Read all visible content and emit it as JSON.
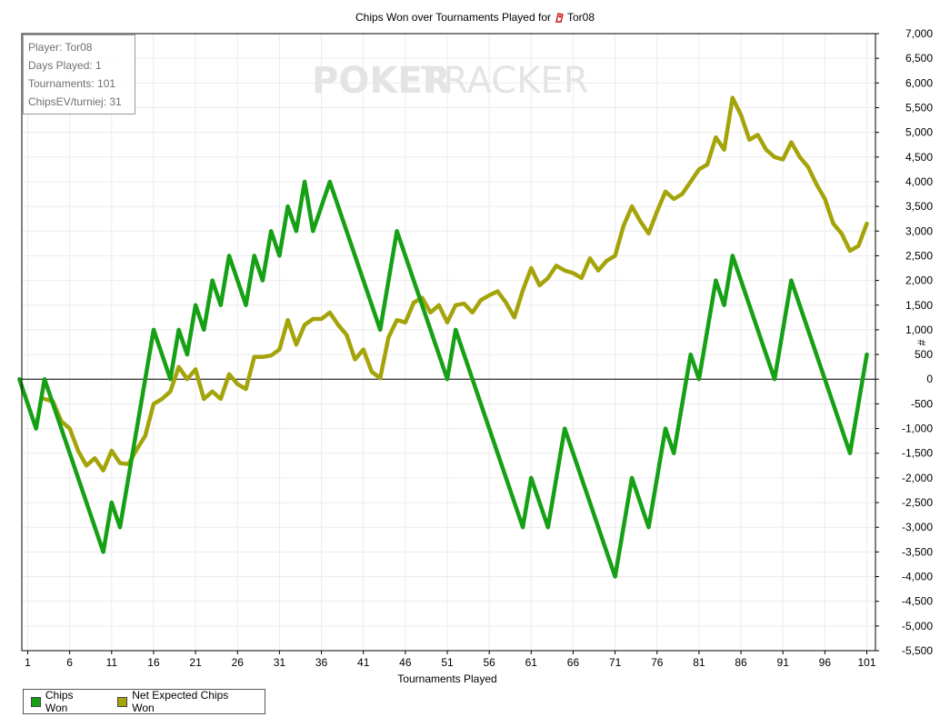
{
  "info": {
    "player": "Player: Tor08",
    "days": "Days Played: 1",
    "tournaments": "Tournaments: 101",
    "chipsev": "ChipsEV/turniej: 31"
  },
  "watermark": {
    "left": "POKER",
    "right": "TRACKER"
  },
  "title": {
    "prefix": "Chips Won over Tournaments Played for",
    "player": "Tor08"
  },
  "colors": {
    "chips_won": "#15a015",
    "net_expected": "#a4a40a",
    "grid": "#ececec"
  },
  "chart_data": {
    "type": "line",
    "title": "Chips Won over Tournaments Played for Tor08",
    "xlabel": "Tournaments Played",
    "ylabel": "#",
    "xlim": [
      0,
      101
    ],
    "ylim": [
      -5500,
      7000
    ],
    "x_ticks": [
      1,
      6,
      11,
      16,
      21,
      26,
      31,
      36,
      41,
      46,
      51,
      56,
      61,
      66,
      71,
      76,
      81,
      86,
      91,
      96,
      101
    ],
    "y_ticks": [
      -5500,
      -5000,
      -4500,
      -4000,
      -3500,
      -3000,
      -2500,
      -2000,
      -1500,
      -1000,
      -500,
      0,
      500,
      1000,
      1500,
      2000,
      2500,
      3000,
      3500,
      4000,
      4500,
      5000,
      5500,
      6000,
      6500,
      7000
    ],
    "legend": "bottom-left",
    "grid": true,
    "series": [
      {
        "name": "Chips Won",
        "x": [
          0,
          2,
          3,
          10,
          11,
          12,
          16,
          18,
          19,
          20,
          21,
          22,
          23,
          24,
          25,
          26,
          27,
          28,
          29,
          30,
          31,
          32,
          33,
          34,
          35,
          37,
          43,
          45,
          51,
          52,
          60,
          61,
          63,
          65,
          71,
          73,
          75,
          77,
          78,
          80,
          81,
          83,
          84,
          85,
          90,
          92,
          99,
          101
        ],
        "y": [
          0,
          -1000,
          0,
          -3500,
          -2500,
          -3000,
          1000,
          0,
          1000,
          500,
          1500,
          1000,
          2000,
          1500,
          2500,
          2000,
          1500,
          2500,
          2000,
          3000,
          2500,
          3500,
          3000,
          4000,
          3000,
          4000,
          1000,
          3000,
          0,
          1000,
          -3000,
          -2000,
          -3000,
          -1000,
          -4000,
          -2000,
          -3000,
          -1000,
          -1500,
          500,
          0,
          2000,
          1500,
          2500,
          0,
          2000,
          -1500,
          500
        ]
      },
      {
        "name": "Net Expected Chips Won",
        "x": [
          3,
          4,
          5,
          6,
          7,
          8,
          9,
          10,
          11,
          12,
          13,
          14,
          15,
          16,
          17,
          18,
          19,
          20,
          21,
          22,
          23,
          24,
          25,
          26,
          27,
          28,
          29,
          30,
          31,
          32,
          33,
          34,
          35,
          36,
          37,
          38,
          39,
          40,
          41,
          42,
          43,
          44,
          45,
          46,
          47,
          48,
          49,
          50,
          51,
          52,
          53,
          54,
          55,
          56,
          57,
          58,
          59,
          60,
          61,
          62,
          63,
          64,
          65,
          66,
          67,
          68,
          69,
          70,
          71,
          72,
          73,
          74,
          75,
          76,
          77,
          78,
          79,
          80,
          81,
          82,
          83,
          84,
          85,
          86,
          87,
          88,
          89,
          90,
          91,
          92,
          93,
          94,
          95,
          96,
          97,
          98,
          99,
          100,
          101
        ],
        "y": [
          -400,
          -450,
          -850,
          -1000,
          -1450,
          -1750,
          -1600,
          -1850,
          -1450,
          -1700,
          -1720,
          -1420,
          -1150,
          -500,
          -400,
          -250,
          250,
          0,
          200,
          -400,
          -250,
          -400,
          100,
          -100,
          -200,
          450,
          450,
          480,
          600,
          1200,
          700,
          1100,
          1220,
          1220,
          1350,
          1100,
          900,
          400,
          600,
          150,
          20,
          850,
          1200,
          1150,
          1550,
          1650,
          1350,
          1500,
          1150,
          1500,
          1530,
          1350,
          1600,
          1700,
          1780,
          1550,
          1250,
          1800,
          2250,
          1900,
          2050,
          2300,
          2200,
          2150,
          2050,
          2450,
          2200,
          2400,
          2500,
          3100,
          3500,
          3200,
          2950,
          3400,
          3800,
          3650,
          3750,
          4000,
          4250,
          4350,
          4900,
          4650,
          5700,
          5350,
          4850,
          4950,
          4650,
          4500,
          4450,
          4800,
          4500,
          4300,
          3950,
          3650,
          3150,
          2950,
          2600,
          2700,
          3150
        ]
      }
    ]
  }
}
